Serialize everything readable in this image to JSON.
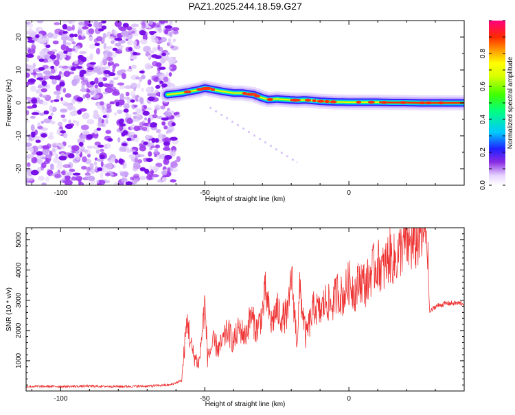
{
  "title": "PAZ1.2025.244.18.59.G27",
  "chart_data": [
    {
      "type": "heatmap",
      "id": "spectrogram",
      "xlabel": "Height of straight line (km)",
      "ylabel": "Frequency (Hz)",
      "xlim": [
        -112,
        40
      ],
      "ylim": [
        -25,
        25
      ],
      "xticks": [
        -100,
        -50,
        0
      ],
      "yticks": [
        -20,
        -10,
        0,
        10,
        20
      ],
      "colorbar": {
        "label": "Normalized spectral amplitude",
        "range": [
          0,
          1
        ],
        "ticks": [
          0.0,
          0.2,
          0.4,
          0.6,
          0.8
        ]
      },
      "ridge": {
        "description": "frequency of peak spectral amplitude vs height",
        "x": [
          -63,
          -58,
          -55,
          -52,
          -50,
          -47,
          -44,
          -40,
          -37,
          -33,
          -30,
          -28,
          -25,
          -22,
          -18,
          -15,
          -10,
          -5,
          0,
          5,
          10,
          15,
          20,
          25,
          30,
          35,
          40
        ],
        "y": [
          2.5,
          3.0,
          3.5,
          4.0,
          4.5,
          4.0,
          3.5,
          3.0,
          3.0,
          2.5,
          1.5,
          1.0,
          1.2,
          1.0,
          0.8,
          0.9,
          0.5,
          0.3,
          0.2,
          0.2,
          0.2,
          0.1,
          0.1,
          0.0,
          0.0,
          0.0,
          0.0
        ]
      },
      "noise_region_x": [
        -112,
        -60
      ]
    },
    {
      "type": "line",
      "id": "snr",
      "xlabel": "Height of straight line (km)",
      "ylabel": "SNR (10 * v/v)",
      "xlim": [
        -112,
        40
      ],
      "ylim": [
        0,
        5400
      ],
      "xticks": [
        -100,
        -50,
        0
      ],
      "yticks": [
        1000,
        2000,
        3000,
        4000,
        5000
      ],
      "color": "#ee3333",
      "series": [
        {
          "name": "SNR",
          "x": [
            -112,
            -100,
            -90,
            -80,
            -70,
            -62,
            -58,
            -57,
            -56,
            -55,
            -54,
            -52,
            -50,
            -49,
            -47,
            -45,
            -42,
            -40,
            -38,
            -36,
            -34,
            -32,
            -30,
            -29,
            -27,
            -25,
            -23,
            -21,
            -20,
            -18,
            -17,
            -15,
            -12,
            -10,
            -8,
            -6,
            -4,
            -2,
            0,
            2,
            4,
            6,
            8,
            10,
            12,
            14,
            16,
            18,
            20,
            22,
            24,
            26,
            27,
            28,
            30,
            34,
            40
          ],
          "y": [
            150,
            150,
            160,
            150,
            160,
            200,
            350,
            1500,
            2400,
            1600,
            1200,
            900,
            2900,
            1100,
            1600,
            1400,
            2000,
            1600,
            2100,
            1800,
            2500,
            2000,
            2600,
            3300,
            2200,
            2700,
            2400,
            2600,
            3900,
            1600,
            3400,
            1800,
            2800,
            2600,
            3000,
            2800,
            3300,
            3100,
            3600,
            3300,
            3700,
            3500,
            4000,
            4200,
            4000,
            4500,
            4300,
            4700,
            4900,
            4800,
            5000,
            5200,
            5300,
            2600,
            2800,
            2900,
            2900
          ]
        }
      ]
    }
  ]
}
